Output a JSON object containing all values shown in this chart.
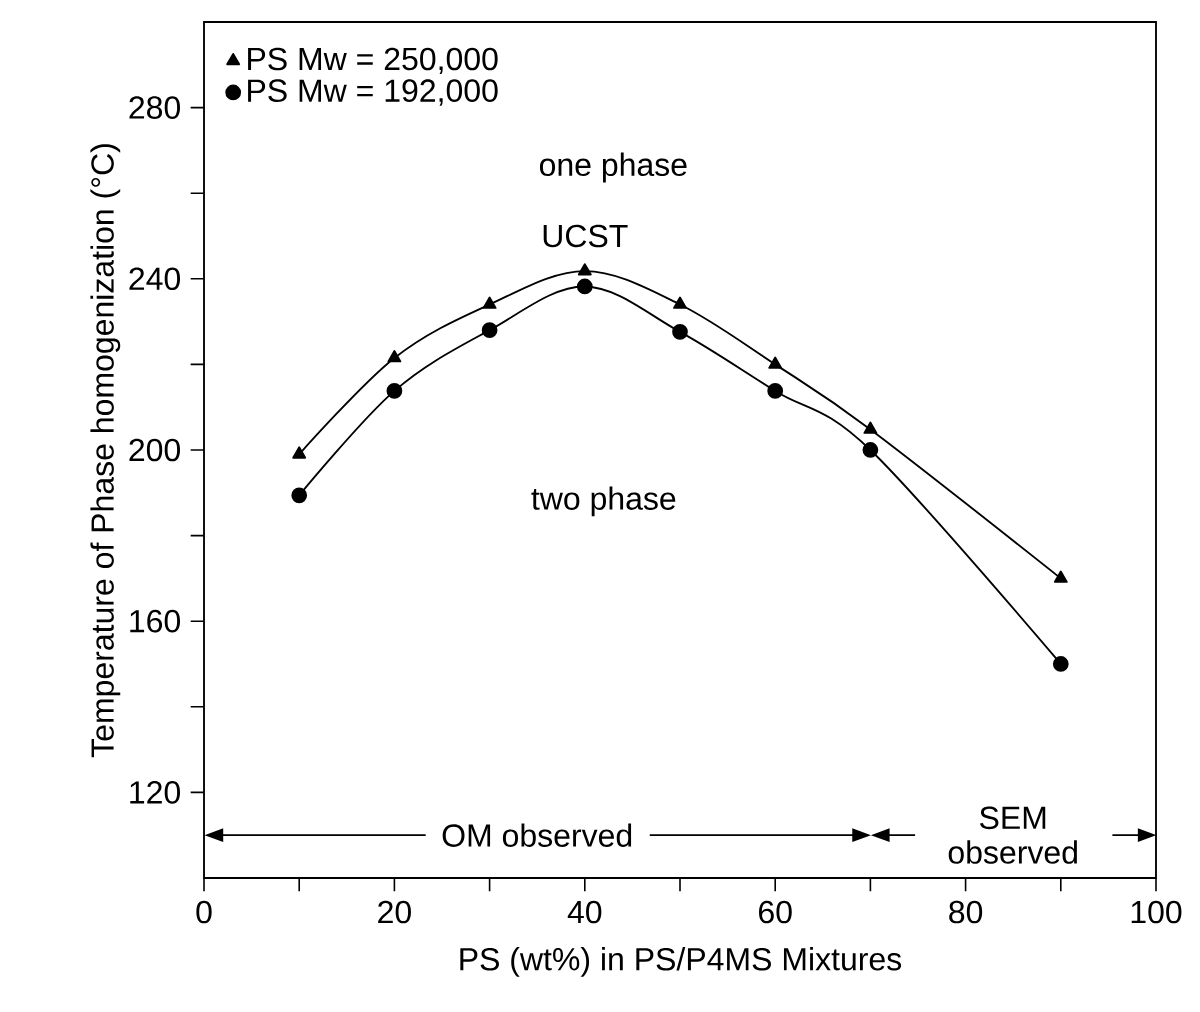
{
  "chart_data": {
    "type": "line",
    "xlabel": "PS (wt%) in PS/P4MS Mixtures",
    "ylabel": "Temperature of Phase homogenization (°C)",
    "x": [
      10,
      20,
      30,
      40,
      50,
      60,
      70,
      90
    ],
    "series": [
      {
        "name": "PS Mw = 250,000",
        "color": "#000000",
        "marker": "triangle",
        "values": [
          199,
          221.5,
          234,
          241.8,
          234,
          220,
          204.8,
          170
        ]
      },
      {
        "name": "PS Mw = 192,000",
        "color": "#000000",
        "marker": "circle",
        "values": [
          189.4,
          213.8,
          228,
          238.2,
          227.6,
          213.8,
          200,
          150
        ]
      }
    ],
    "xlim": [
      0,
      100
    ],
    "ylim": [
      100,
      300
    ],
    "xticks": [
      0,
      {
        "value": 10,
        "label": null
      },
      20,
      {
        "value": 30,
        "label": null
      },
      40,
      {
        "value": 50,
        "label": null
      },
      60,
      {
        "value": 70,
        "label": null
      },
      80,
      {
        "value": 90,
        "label": null
      },
      100
    ],
    "yticks": [
      120,
      {
        "value": 140,
        "label": null
      },
      160,
      {
        "value": 180,
        "label": null
      },
      200,
      {
        "value": 220,
        "label": null
      },
      240,
      {
        "value": 260,
        "label": null
      },
      280
    ],
    "legend": "top left",
    "grid": false,
    "annotations": [
      "one phase",
      "UCST",
      "two phase",
      "OM observed",
      "SEM observed"
    ]
  }
}
